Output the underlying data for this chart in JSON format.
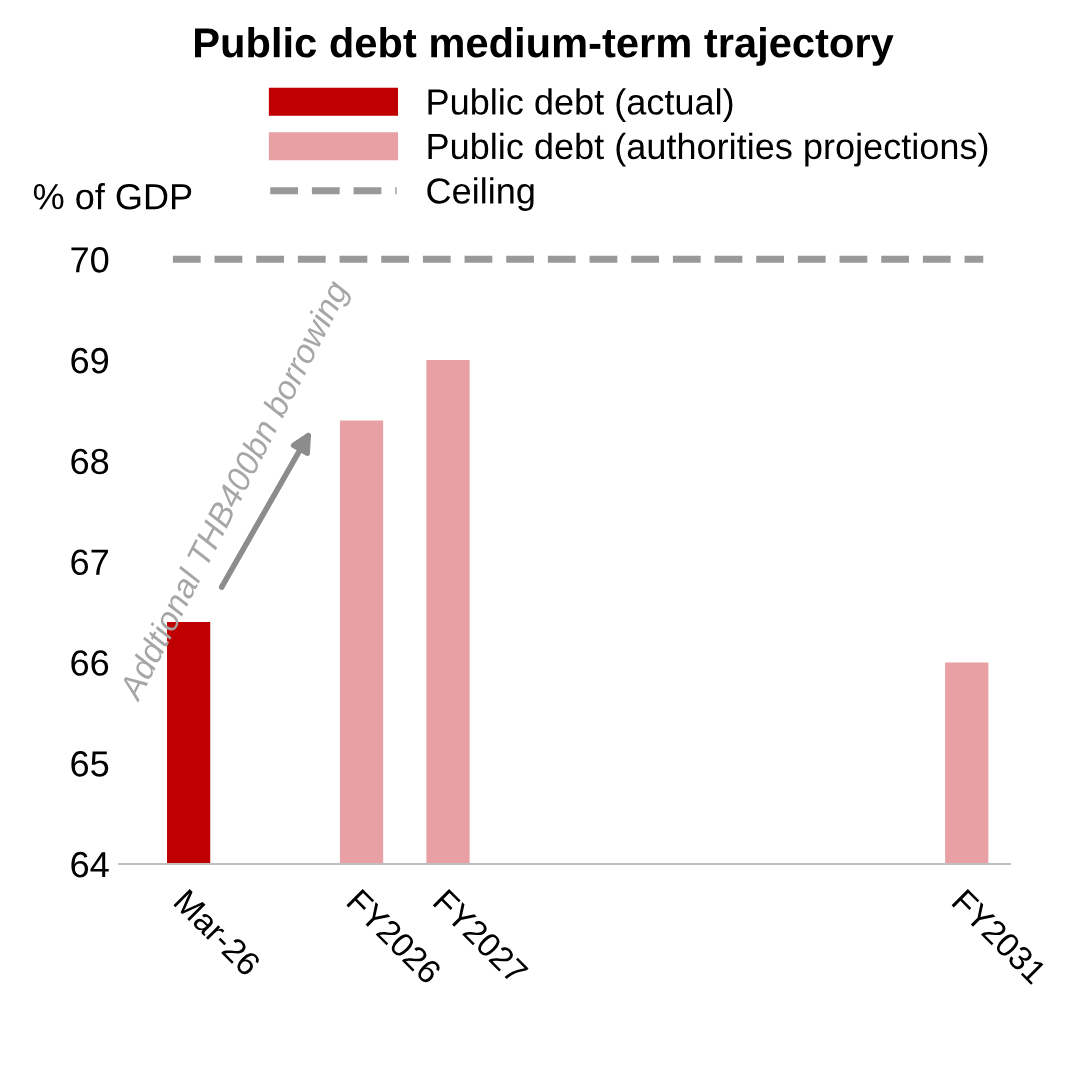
{
  "chart_data": {
    "type": "bar",
    "title": "Public debt medium-term trajectory",
    "ylabel": "% of GDP",
    "categories": [
      "Mar-26",
      null,
      "FY2026",
      "FY2027",
      null,
      null,
      null,
      null,
      null,
      "FY2031"
    ],
    "series": [
      {
        "name": "Public debt (actual)",
        "color": "#c00000",
        "values": [
          66.4,
          null,
          null,
          null,
          null,
          null,
          null,
          null,
          null,
          null
        ]
      },
      {
        "name": "Public debt (authorities projections)",
        "color": "#e8a0a4",
        "values": [
          null,
          null,
          68.4,
          69.0,
          null,
          null,
          null,
          null,
          null,
          66.0
        ]
      }
    ],
    "ref_lines": [
      {
        "axis": "y",
        "value": 70,
        "label": "Ceiling",
        "color": "#999999",
        "line_style": "dashed"
      }
    ],
    "annotations": [
      "Addtional THB400bn borrowing"
    ],
    "ylim": [
      64,
      70
    ],
    "yticks": [
      64,
      65,
      66,
      67,
      68,
      69,
      70
    ],
    "grid": false,
    "legend": "top"
  }
}
